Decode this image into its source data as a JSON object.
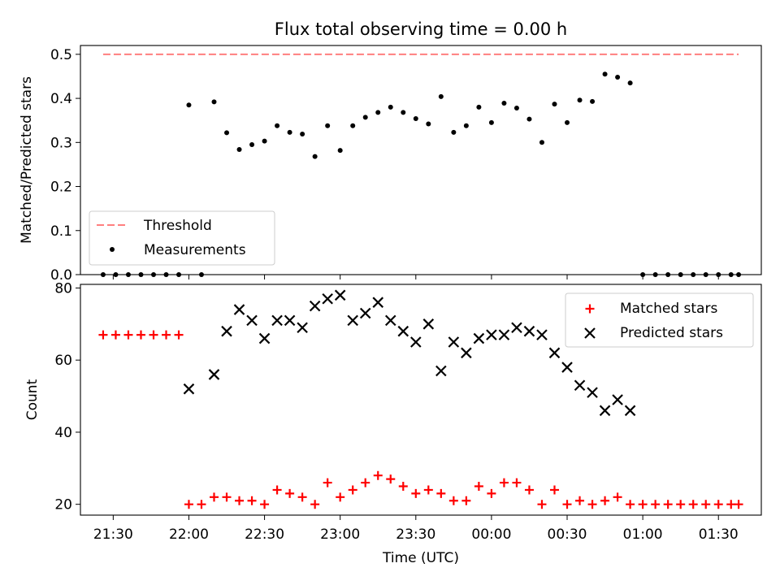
{
  "colors": {
    "threshold": "#ff7f7f",
    "measurements": "#000000",
    "matched": "#ff0000",
    "predicted": "#000000"
  },
  "chart_data": [
    {
      "type": "scatter",
      "title": "Flux total observing time = 0.00 h",
      "xlabel": "",
      "ylabel": "Matched/Predicted stars",
      "ylim": [
        0,
        0.52
      ],
      "yticks": [
        "0.0",
        "0.1",
        "0.2",
        "0.3",
        "0.4",
        "0.5"
      ],
      "x_ticks_shown": false,
      "legend": {
        "position": "lower-left",
        "entries": [
          "Threshold",
          "Measurements"
        ]
      },
      "series": [
        {
          "name": "Threshold",
          "kind": "dashed-line",
          "x": [
            "21:26",
            "01:38"
          ],
          "y": [
            0.5,
            0.5
          ]
        },
        {
          "name": "Measurements",
          "kind": "points",
          "x": [
            "21:26",
            "21:31",
            "21:36",
            "21:41",
            "21:46",
            "21:51",
            "21:56",
            "22:00",
            "22:05",
            "22:10",
            "22:15",
            "22:20",
            "22:25",
            "22:30",
            "22:35",
            "22:40",
            "22:45",
            "22:50",
            "22:55",
            "23:00",
            "23:05",
            "23:10",
            "23:15",
            "23:20",
            "23:25",
            "23:30",
            "23:35",
            "23:40",
            "23:45",
            "23:50",
            "23:55",
            "00:00",
            "00:05",
            "00:10",
            "00:15",
            "00:20",
            "00:25",
            "00:30",
            "00:35",
            "00:40",
            "00:45",
            "00:50",
            "00:55",
            "01:00",
            "01:05",
            "01:10",
            "01:15",
            "01:20",
            "01:25",
            "01:30",
            "01:35",
            "01:38"
          ],
          "y": [
            0.0,
            0.0,
            0.0,
            0.0,
            0.0,
            0.0,
            0.0,
            0.385,
            0.0,
            0.392,
            0.322,
            0.284,
            0.295,
            0.303,
            0.338,
            0.323,
            0.319,
            0.268,
            0.338,
            0.282,
            0.338,
            0.357,
            0.368,
            0.38,
            0.368,
            0.354,
            0.342,
            0.404,
            0.323,
            0.338,
            0.38,
            0.345,
            0.389,
            0.378,
            0.353,
            0.3,
            0.387,
            0.345,
            0.396,
            0.393,
            0.455,
            0.448,
            0.435,
            0.0,
            0.0,
            0.0,
            0.0,
            0.0,
            0.0,
            0.0,
            0.0,
            0.0
          ]
        }
      ]
    },
    {
      "type": "scatter",
      "title": "",
      "xlabel": "Time (UTC)",
      "ylabel": "Count",
      "ylim": [
        17,
        81
      ],
      "yticks": [
        "20",
        "40",
        "60",
        "80"
      ],
      "xticks": [
        "21:30",
        "22:00",
        "22:30",
        "23:00",
        "23:30",
        "00:00",
        "00:30",
        "01:00",
        "01:30"
      ],
      "legend": {
        "position": "upper-right",
        "entries": [
          "Matched stars",
          "Predicted stars"
        ]
      },
      "series": [
        {
          "name": "Matched stars",
          "marker": "plus",
          "x": [
            "21:26",
            "21:31",
            "21:36",
            "21:41",
            "21:46",
            "21:51",
            "21:56",
            "22:00",
            "22:05",
            "22:10",
            "22:15",
            "22:20",
            "22:25",
            "22:30",
            "22:35",
            "22:40",
            "22:45",
            "22:50",
            "22:55",
            "23:00",
            "23:05",
            "23:10",
            "23:15",
            "23:20",
            "23:25",
            "23:30",
            "23:35",
            "23:40",
            "23:45",
            "23:50",
            "23:55",
            "00:00",
            "00:05",
            "00:10",
            "00:15",
            "00:20",
            "00:25",
            "00:30",
            "00:35",
            "00:40",
            "00:45",
            "00:50",
            "00:55",
            "01:00",
            "01:05",
            "01:10",
            "01:15",
            "01:20",
            "01:25",
            "01:30",
            "01:35",
            "01:38"
          ],
          "y": [
            67,
            67,
            67,
            67,
            67,
            67,
            67,
            20,
            20,
            22,
            22,
            21,
            21,
            20,
            24,
            23,
            22,
            20,
            26,
            22,
            24,
            26,
            28,
            27,
            25,
            23,
            24,
            23,
            21,
            21,
            25,
            23,
            26,
            26,
            24,
            20,
            24,
            20,
            21,
            20,
            21,
            22,
            20,
            20,
            20,
            20,
            20,
            20,
            20,
            20,
            20,
            20
          ]
        },
        {
          "name": "Predicted stars",
          "marker": "cross",
          "x": [
            "22:00",
            "22:10",
            "22:15",
            "22:20",
            "22:25",
            "22:30",
            "22:35",
            "22:40",
            "22:45",
            "22:50",
            "22:55",
            "23:00",
            "23:05",
            "23:10",
            "23:15",
            "23:20",
            "23:25",
            "23:30",
            "23:35",
            "23:40",
            "23:45",
            "23:50",
            "23:55",
            "00:00",
            "00:05",
            "00:10",
            "00:15",
            "00:20",
            "00:25",
            "00:30",
            "00:35",
            "00:40",
            "00:45",
            "00:50",
            "00:55"
          ],
          "y": [
            52,
            56,
            68,
            74,
            71,
            66,
            71,
            71,
            69,
            75,
            77,
            78,
            71,
            73,
            76,
            71,
            68,
            65,
            70,
            57,
            65,
            62,
            66,
            67,
            67,
            69,
            68,
            67,
            62,
            58,
            53,
            51,
            46,
            49,
            46
          ]
        }
      ]
    }
  ]
}
